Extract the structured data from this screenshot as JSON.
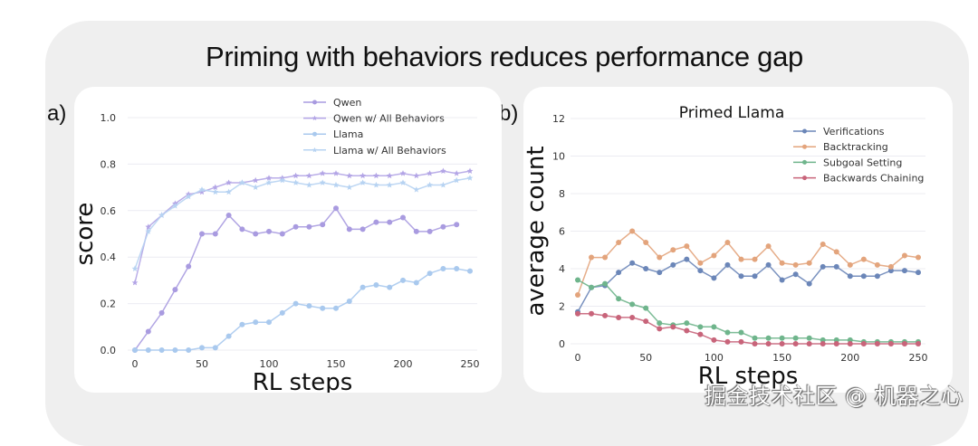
{
  "title": "Priming with behaviors reduces performance gap",
  "watermark": "掘金技术社区 @ 机器之心",
  "chart_data": [
    {
      "panel_label": "a)",
      "type": "line",
      "title": "",
      "xlabel": "RL steps",
      "ylabel": "score",
      "xlim": [
        0,
        250
      ],
      "ylim": [
        0,
        1.0
      ],
      "xticks": [
        "0",
        "50",
        "100",
        "150",
        "200",
        "250"
      ],
      "yticks": [
        "0.0",
        "0.2",
        "0.4",
        "0.6",
        "0.8",
        "1.0"
      ],
      "grid": true,
      "legend_position": "top-right",
      "x": [
        0,
        10,
        20,
        30,
        40,
        50,
        60,
        70,
        80,
        90,
        100,
        110,
        120,
        130,
        140,
        150,
        160,
        170,
        180,
        190,
        200,
        210,
        220,
        230,
        240,
        250
      ],
      "series": [
        {
          "name": "Qwen",
          "color": "#a99be0",
          "marker": "circle",
          "values": [
            0.0,
            0.08,
            0.16,
            0.26,
            0.36,
            0.5,
            0.5,
            0.58,
            0.52,
            0.5,
            0.51,
            0.5,
            0.53,
            0.53,
            0.54,
            0.61,
            0.52,
            0.52,
            0.55,
            0.55,
            0.57,
            0.51,
            0.51,
            0.53,
            0.54,
            null
          ]
        },
        {
          "name": "Qwen w/ All Behaviors",
          "color": "#b3a5e6",
          "marker": "star",
          "values": [
            0.29,
            0.53,
            0.58,
            0.63,
            0.67,
            0.68,
            0.7,
            0.72,
            0.72,
            0.73,
            0.74,
            0.74,
            0.75,
            0.75,
            0.76,
            0.76,
            0.75,
            0.75,
            0.75,
            0.75,
            0.76,
            0.75,
            0.76,
            0.77,
            0.76,
            0.77
          ]
        },
        {
          "name": "Llama",
          "color": "#a9c9ee",
          "marker": "circle",
          "values": [
            0.0,
            0.0,
            0.0,
            0.0,
            0.0,
            0.01,
            0.01,
            0.06,
            0.11,
            0.12,
            0.12,
            0.16,
            0.2,
            0.19,
            0.18,
            0.18,
            0.21,
            0.27,
            0.28,
            0.27,
            0.3,
            0.29,
            0.33,
            0.35,
            0.35,
            0.34
          ]
        },
        {
          "name": "Llama w/ All Behaviors",
          "color": "#b7d3f2",
          "marker": "star",
          "values": [
            0.35,
            0.51,
            0.58,
            0.62,
            0.66,
            0.69,
            0.68,
            0.68,
            0.72,
            0.7,
            0.72,
            0.73,
            0.72,
            0.71,
            0.72,
            0.71,
            0.7,
            0.72,
            0.71,
            0.71,
            0.72,
            0.69,
            0.71,
            0.71,
            0.73,
            0.74
          ]
        }
      ]
    },
    {
      "panel_label": "b)",
      "type": "line",
      "title": "Primed Llama",
      "xlabel": "RL steps",
      "ylabel": "average count",
      "xlim": [
        0,
        250
      ],
      "ylim": [
        0,
        12
      ],
      "xticks": [
        "0",
        "50",
        "100",
        "150",
        "200",
        "250"
      ],
      "yticks": [
        "0",
        "2",
        "4",
        "6",
        "8",
        "10",
        "12"
      ],
      "grid": true,
      "legend_position": "top-right",
      "x": [
        0,
        10,
        20,
        30,
        40,
        50,
        60,
        70,
        80,
        90,
        100,
        110,
        120,
        130,
        140,
        150,
        160,
        170,
        180,
        190,
        200,
        210,
        220,
        230,
        240,
        250
      ],
      "series": [
        {
          "name": "Verifications",
          "color": "#6b86b8",
          "marker": "circle",
          "values": [
            1.7,
            3.0,
            3.1,
            3.8,
            4.3,
            4.0,
            3.8,
            4.2,
            4.5,
            3.9,
            3.5,
            4.2,
            3.6,
            3.6,
            4.2,
            3.4,
            3.7,
            3.2,
            4.1,
            4.1,
            3.6,
            3.6,
            3.6,
            3.9,
            3.9,
            3.8
          ]
        },
        {
          "name": "Backtracking",
          "color": "#e3a47c",
          "marker": "circle",
          "values": [
            2.6,
            4.6,
            4.6,
            5.4,
            6.0,
            5.4,
            4.6,
            5.0,
            5.2,
            4.3,
            4.7,
            5.4,
            4.5,
            4.5,
            5.2,
            4.3,
            4.2,
            4.3,
            5.3,
            4.9,
            4.2,
            4.5,
            4.2,
            4.1,
            4.7,
            4.6
          ]
        },
        {
          "name": "Subgoal Setting",
          "color": "#6fb58c",
          "marker": "circle",
          "values": [
            3.4,
            3.0,
            3.2,
            2.4,
            2.1,
            1.9,
            1.1,
            1.0,
            1.1,
            0.9,
            0.9,
            0.6,
            0.6,
            0.3,
            0.3,
            0.3,
            0.3,
            0.3,
            0.2,
            0.2,
            0.2,
            0.1,
            0.1,
            0.1,
            0.1,
            0.1
          ]
        },
        {
          "name": "Backwards Chaining",
          "color": "#c8647a",
          "marker": "circle",
          "values": [
            1.6,
            1.6,
            1.5,
            1.4,
            1.4,
            1.2,
            0.8,
            0.9,
            0.7,
            0.5,
            0.2,
            0.1,
            0.1,
            0.0,
            0.0,
            0.0,
            0.0,
            0.0,
            0.0,
            0.0,
            0.0,
            0.0,
            0.0,
            0.0,
            0.0,
            0.0
          ]
        }
      ]
    }
  ]
}
